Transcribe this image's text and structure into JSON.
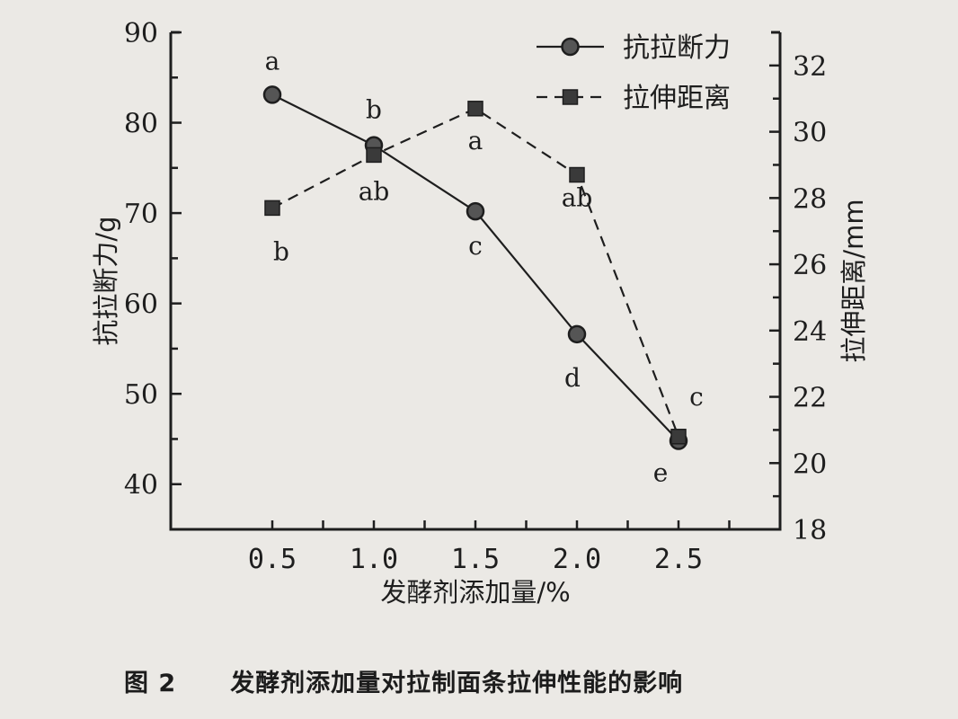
{
  "chart_data": {
    "type": "line",
    "x": [
      0.5,
      1.0,
      1.5,
      2.0,
      2.5
    ],
    "xlabel": "发酵剂添加量/%",
    "xlim": [
      0,
      3
    ],
    "xticks": [
      "0.5",
      "1.0",
      "1.5",
      "2.0",
      "2.5"
    ],
    "ylabel": "抗拉断力/g",
    "ylim": [
      35,
      90
    ],
    "yticks": [
      "40",
      "50",
      "60",
      "70",
      "80",
      "90"
    ],
    "y2label": "拉伸距离/mm",
    "y2lim": [
      18,
      33
    ],
    "y2ticks": [
      "18",
      "20",
      "22",
      "24",
      "26",
      "28",
      "30",
      "32"
    ],
    "grid": false,
    "legend_position": "top-right",
    "series": [
      {
        "name": "抗拉断力",
        "axis": "left",
        "style": "solid",
        "marker": "circle",
        "values": [
          83.1,
          77.5,
          70.2,
          56.6,
          44.8
        ],
        "labels": [
          "a",
          "b",
          "c",
          "d",
          "e"
        ]
      },
      {
        "name": "拉伸距离",
        "axis": "right",
        "style": "dashed",
        "marker": "square",
        "values": [
          27.7,
          29.3,
          30.7,
          28.7,
          20.8
        ],
        "labels": [
          "b",
          "ab",
          "a",
          "ab",
          "c"
        ]
      }
    ]
  },
  "caption": {
    "number": "图 2",
    "text": "发酵剂添加量对拉制面条拉伸性能的影响"
  }
}
